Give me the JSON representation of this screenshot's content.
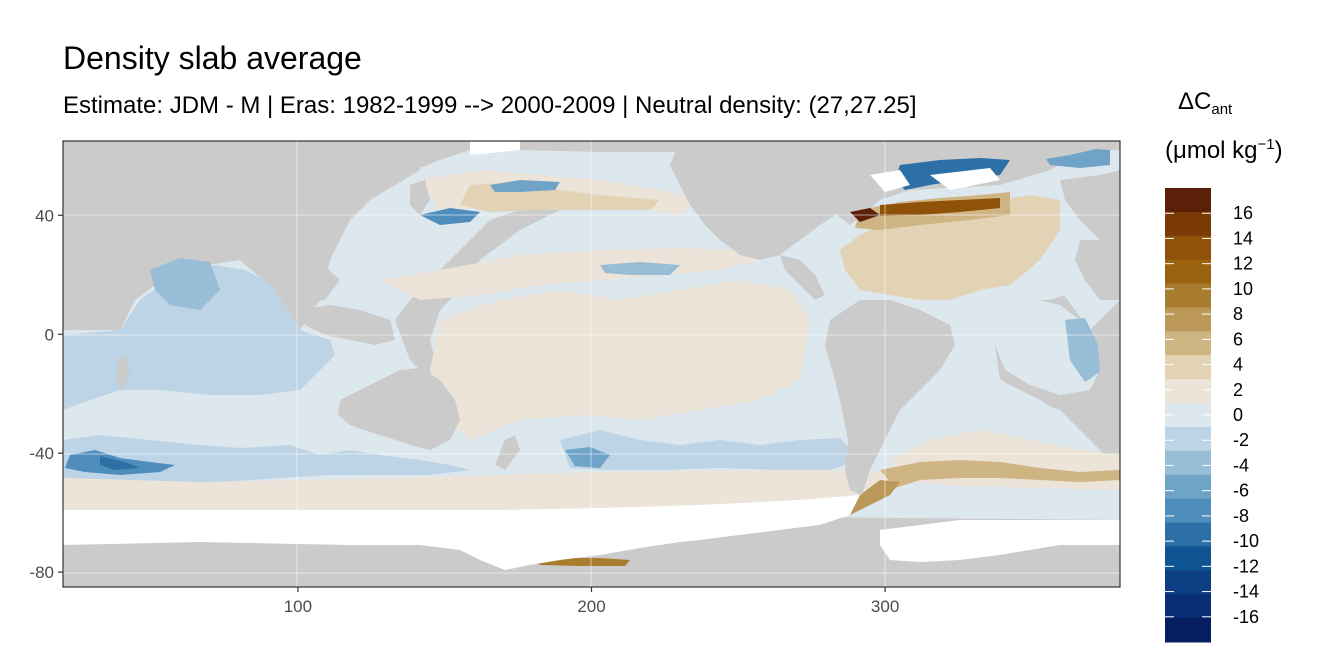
{
  "title": "Density slab average",
  "subtitle": "Estimate: JDM - M | Eras: 1982-1999 --> 2000-2009 | Neutral density: (27,27.25]",
  "legend": {
    "title_main": "ΔC",
    "title_sub": "ant",
    "unit_prefix": "(μmol kg",
    "unit_sup": "−1",
    "unit_suffix": ")",
    "labels": [
      "16",
      "14",
      "12",
      "10",
      "8",
      "6",
      "4",
      "2",
      "0",
      "-2",
      "-4",
      "-6",
      "-8",
      "-10",
      "-12",
      "-14",
      "-16"
    ],
    "colors": [
      "#5c1f07",
      "#7a3a06",
      "#8f5208",
      "#9b630f",
      "#a97d2f",
      "#bb9858",
      "#cfb484",
      "#e3d3b5",
      "#ece4d8",
      "#dde7ee",
      "#bcd4e5",
      "#97bdd7",
      "#6fa3c8",
      "#4f8dbd",
      "#2c70a7",
      "#0f5593",
      "#0d3f84",
      "#0a2e74",
      "#061f61"
    ]
  },
  "chart_data": {
    "type": "heatmap",
    "title": "Density slab average",
    "subtitle": "Estimate: JDM - M | Eras: 1982-1999 --> 2000-2009 | Neutral density: (27,27.25]",
    "xlabel": "",
    "ylabel": "",
    "xlim": [
      20,
      380
    ],
    "ylim": [
      -85,
      65
    ],
    "x_ticks": [
      100,
      200,
      300
    ],
    "y_ticks": [
      40,
      0,
      -40,
      -80
    ],
    "grid": true,
    "legend_position": "right",
    "colorbar_range": [
      -18,
      18
    ],
    "colorbar_step": 2
  }
}
